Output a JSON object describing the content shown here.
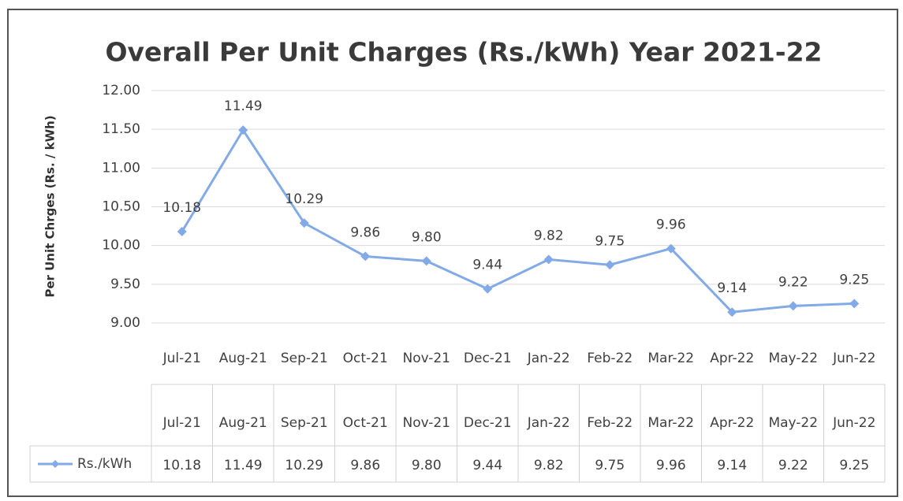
{
  "chart_data": {
    "type": "line",
    "title": "Overall Per Unit Charges (Rs./kWh) Year 2021-22",
    "y_label": "Per Unit Chrges (Rs. / kWh)",
    "categories": [
      "Jul-21",
      "Aug-21",
      "Sep-21",
      "Oct-21",
      "Nov-21",
      "Dec-21",
      "Jan-22",
      "Feb-22",
      "Mar-22",
      "Apr-22",
      "May-22",
      "Jun-22"
    ],
    "series": [
      {
        "name": "Rs./kWh",
        "color": "#82aae6",
        "values": [
          10.18,
          11.49,
          10.29,
          9.86,
          9.8,
          9.44,
          9.82,
          9.75,
          9.96,
          9.14,
          9.22,
          9.25
        ],
        "value_labels": [
          "10.18",
          "11.49",
          "10.29",
          "9.86",
          "9.80",
          "9.44",
          "9.82",
          "9.75",
          "9.96",
          "9.14",
          "9.22",
          "9.25"
        ]
      }
    ],
    "ylim": [
      9,
      12
    ],
    "yticks": [
      {
        "value": 9,
        "label": "9.00"
      },
      {
        "value": 9.5,
        "label": "9.50"
      },
      {
        "value": 10,
        "label": "10.00"
      },
      {
        "value": 10.5,
        "label": "10.50"
      },
      {
        "value": 11,
        "label": "11.00"
      },
      {
        "value": 11.5,
        "label": "11.50"
      },
      {
        "value": 12,
        "label": "12.00"
      }
    ],
    "grid": true,
    "data_table": true
  }
}
